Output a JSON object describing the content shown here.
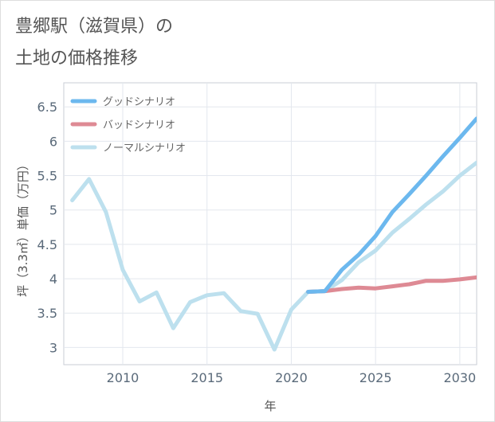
{
  "title": {
    "line1": "豊郷駅（滋賀県）の",
    "line2": "土地の価格推移"
  },
  "chart_data": {
    "type": "line",
    "xlabel": "年",
    "ylabel": "坪（3.3㎡）単価（万円）",
    "xlim": [
      2006.5,
      2031
    ],
    "ylim": [
      2.75,
      6.85
    ],
    "xticks": [
      2010,
      2015,
      2020,
      2025,
      2030
    ],
    "yticks": [
      3,
      3.5,
      4,
      4.5,
      5,
      5.5,
      6,
      6.5
    ],
    "ytick_labels": [
      "3",
      "3.5",
      "4",
      "4.5",
      "5",
      "5.5",
      "6",
      "6.5"
    ],
    "grid": true,
    "legend_position": "top-left",
    "series": [
      {
        "name": "グッドシナリオ",
        "color": "#6cb8ee",
        "x": [
          2021,
          2022,
          2023,
          2024,
          2025,
          2026,
          2027,
          2028,
          2029,
          2030,
          2031
        ],
        "y": [
          3.81,
          3.82,
          4.13,
          4.35,
          4.62,
          4.97,
          5.23,
          5.5,
          5.78,
          6.05,
          6.33
        ]
      },
      {
        "name": "バッドシナリオ",
        "color": "#de8a94",
        "x": [
          2021,
          2022,
          2023,
          2024,
          2025,
          2026,
          2027,
          2028,
          2029,
          2030,
          2031
        ],
        "y": [
          3.81,
          3.82,
          3.85,
          3.87,
          3.86,
          3.89,
          3.92,
          3.97,
          3.97,
          3.99,
          4.02
        ]
      },
      {
        "name": "ノーマルシナリオ",
        "color": "#bde0ee",
        "x": [
          2007,
          2008,
          2009,
          2010,
          2011,
          2012,
          2013,
          2014,
          2015,
          2016,
          2017,
          2018,
          2019,
          2020,
          2021,
          2022,
          2023,
          2024,
          2025,
          2026,
          2027,
          2028,
          2029,
          2030,
          2031
        ],
        "y": [
          5.14,
          5.45,
          4.97,
          4.13,
          3.67,
          3.8,
          3.28,
          3.66,
          3.76,
          3.79,
          3.53,
          3.49,
          2.97,
          3.55,
          3.81,
          3.82,
          3.98,
          4.24,
          4.41,
          4.67,
          4.87,
          5.08,
          5.27,
          5.5,
          5.69
        ]
      }
    ]
  }
}
